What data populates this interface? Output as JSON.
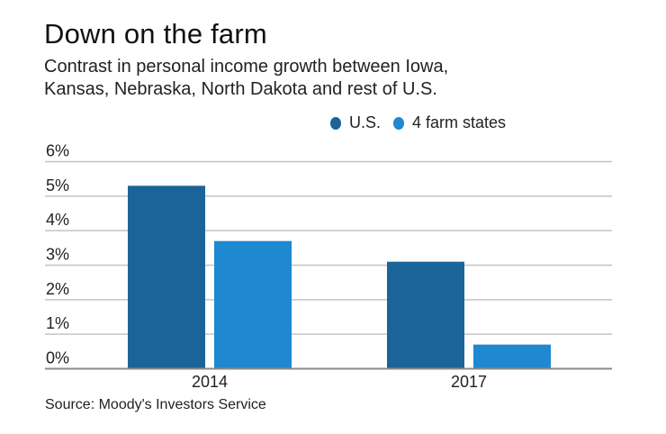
{
  "chart_data": {
    "type": "bar",
    "title": "Down on the farm",
    "subtitle": "Contrast in personal income growth between Iowa, Kansas, Nebraska, North Dakota and rest of U.S.",
    "subtitle_lines": [
      "Contrast in personal income growth between Iowa,",
      "Kansas, Nebraska, North Dakota and rest of U.S."
    ],
    "categories": [
      "2014",
      "2017"
    ],
    "series": [
      {
        "name": "U.S.",
        "color": "#1b6499",
        "values": [
          5.3,
          3.1
        ]
      },
      {
        "name": "4 farm states",
        "color": "#1e88d0",
        "values": [
          3.7,
          0.7
        ]
      }
    ],
    "xlabel": "",
    "ylabel": "",
    "ylim": [
      0,
      6
    ],
    "yticks": [
      0,
      1,
      2,
      3,
      4,
      5,
      6
    ],
    "ytick_labels": [
      "0%",
      "1%",
      "2%",
      "3%",
      "4%",
      "5%",
      "6%"
    ],
    "grid": true,
    "legend_position": "top-right",
    "source": "Source: Moody's Investors Service"
  }
}
